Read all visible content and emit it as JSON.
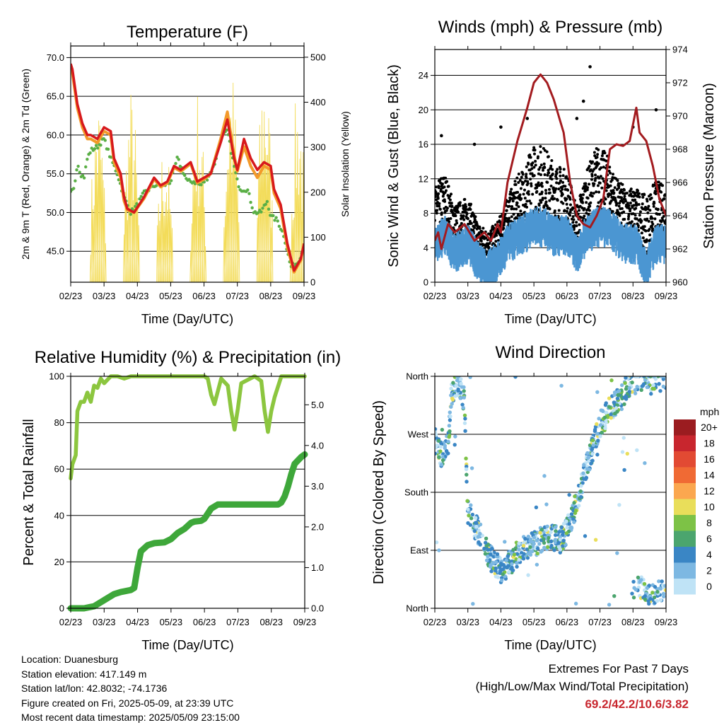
{
  "colors": {
    "t2m": "#d7191c",
    "t9m": "#f39a2a",
    "td2m": "#5aaf46",
    "solar": "#f3dc5a",
    "sonic": "#4b96d2",
    "gust": "#000000",
    "pressure": "#a31b1f",
    "rh": "#8cc63f",
    "precip": "#3ea73a"
  },
  "chart_data": [
    {
      "type": "line",
      "title": "Temperature (F)",
      "xlabel": "Time (Day/UTC)",
      "ylabel": "2m & 9m T (Red, Orange) & 2m Td (Green)",
      "y2label": "Solar Insolation (Yellow)",
      "x_ticks": [
        "02/23",
        "03/23",
        "04/23",
        "05/23",
        "06/23",
        "07/23",
        "08/23",
        "09/23"
      ],
      "ylim": [
        41,
        71.5
      ],
      "y_ticks": [
        "70.0",
        "65.0",
        "60.0",
        "55.0",
        "50.0",
        "45.0"
      ],
      "y_tick_values": [
        70,
        65,
        60,
        55,
        50,
        45
      ],
      "y2lim": [
        0,
        525
      ],
      "y2_ticks": [
        "0",
        "100",
        "200",
        "300",
        "400",
        "500"
      ],
      "y2_tick_values": [
        0,
        100,
        200,
        300,
        400,
        500
      ],
      "grid": true,
      "series": [
        {
          "key": "t2m",
          "x": [
            0,
            0.05,
            0.2,
            0.35,
            0.5,
            0.6,
            0.8,
            1.0,
            1.2,
            1.3,
            1.5,
            1.6,
            1.7,
            1.9,
            2.2,
            2.5,
            2.7,
            2.9,
            3.1,
            3.3,
            3.6,
            3.8,
            4.0,
            4.2,
            4.5,
            4.7,
            4.9,
            5.0,
            5.2,
            5.4,
            5.6,
            5.8,
            6.0,
            6.1,
            6.3,
            6.5,
            6.7,
            6.9,
            7.0
          ],
          "y": [
            69.2,
            68.5,
            64,
            61.5,
            60,
            60,
            59.5,
            61,
            60.5,
            57,
            55,
            52,
            50.5,
            50,
            52,
            54.5,
            53.5,
            54,
            56,
            55.5,
            56.5,
            54,
            54.5,
            55,
            59,
            62,
            57,
            55.5,
            59.5,
            57,
            55.5,
            56.5,
            56,
            53,
            51,
            46,
            42.5,
            44,
            46
          ]
        },
        {
          "key": "t9m",
          "x": [
            0,
            0.05,
            0.2,
            0.35,
            0.5,
            0.6,
            0.8,
            1.0,
            1.2,
            1.3,
            1.5,
            1.6,
            1.7,
            1.9,
            2.2,
            2.5,
            2.7,
            2.9,
            3.1,
            3.3,
            3.6,
            3.8,
            4.0,
            4.2,
            4.5,
            4.7,
            4.9,
            5.0,
            5.2,
            5.4,
            5.6,
            5.8,
            6.0,
            6.1,
            6.3,
            6.5,
            6.7,
            6.9,
            7.0
          ],
          "y": [
            69,
            68,
            63.5,
            61,
            59.5,
            59.5,
            59,
            60.5,
            60,
            56.5,
            54.5,
            51.5,
            50.3,
            50,
            51.8,
            54.3,
            53.3,
            53.8,
            55.8,
            55.3,
            56.3,
            53.8,
            54.3,
            55,
            59.5,
            63,
            57.5,
            55.3,
            58.5,
            56,
            54.5,
            56,
            55.5,
            52.5,
            50.5,
            45.5,
            42.3,
            43.8,
            45.8
          ]
        },
        {
          "key": "td2m",
          "x": [
            0,
            0.1,
            0.2,
            0.3,
            0.4,
            0.5,
            0.6,
            0.8,
            1.0,
            1.2,
            1.4,
            1.6,
            1.8,
            2.0,
            2.2,
            2.5,
            2.8,
            3.0,
            3.2,
            3.5,
            3.7,
            3.9,
            4.1,
            4.3,
            4.5,
            4.7,
            4.9,
            5.0,
            5.1,
            5.3,
            5.5,
            5.7,
            5.9,
            6.0,
            6.2,
            6.4,
            6.6,
            6.8,
            7.0
          ],
          "y": [
            52.5,
            53,
            56.5,
            55,
            54.5,
            57,
            58,
            58.5,
            59.5,
            57,
            55,
            52,
            50,
            51,
            52.5,
            53.5,
            53.5,
            54,
            57,
            54,
            54,
            53.5,
            54.5,
            56,
            59.5,
            60.5,
            56,
            54,
            53,
            53,
            50,
            50,
            51.5,
            49.5,
            49,
            47,
            43,
            43.5,
            45.5
          ]
        },
        {
          "key": "solar",
          "axis": "y2",
          "type": "spikes",
          "peak_days": [
            0.8,
            1.8,
            2.8,
            3.8,
            4.8,
            5.8,
            6.8
          ],
          "peak_values": [
            430,
            440,
            330,
            440,
            490,
            520,
            440
          ]
        }
      ]
    },
    {
      "type": "scatter",
      "title": "Winds (mph) & Pressure (mb)",
      "xlabel": "Time (Day/UTC)",
      "ylabel": "Sonic Wind & Gust (Blue, Black)",
      "y2label": "Station Pressure (Maroon)",
      "x_ticks": [
        "02/23",
        "03/23",
        "04/23",
        "05/23",
        "06/23",
        "07/23",
        "08/23",
        "09/23"
      ],
      "ylim": [
        0,
        27
      ],
      "y_ticks": [
        "0",
        "4",
        "8",
        "12",
        "16",
        "20",
        "24"
      ],
      "y_tick_values": [
        0,
        4,
        8,
        12,
        16,
        20,
        24
      ],
      "y2lim": [
        960,
        974
      ],
      "y2_ticks": [
        "960",
        "962",
        "964",
        "966",
        "968",
        "970",
        "972",
        "974"
      ],
      "y2_tick_values": [
        960,
        962,
        964,
        966,
        968,
        970,
        972,
        974
      ],
      "grid": true,
      "series": [
        {
          "key": "pressure",
          "type": "line",
          "x": [
            0,
            0.1,
            0.2,
            0.4,
            0.6,
            0.9,
            1.2,
            1.5,
            1.7,
            1.9,
            2.0,
            2.2,
            2.5,
            2.8,
            3.0,
            3.2,
            3.4,
            3.6,
            3.9,
            4.1,
            4.3,
            4.5,
            4.7,
            4.9,
            5.1,
            5.3,
            5.5,
            5.7,
            5.9,
            6.1,
            6.2,
            6.4,
            6.6,
            6.8,
            7.0
          ],
          "y": [
            962.5,
            963,
            962,
            963.5,
            963,
            963.5,
            962.5,
            963,
            962.5,
            963.5,
            963,
            966,
            968.5,
            970.5,
            972,
            972.5,
            972,
            971,
            969,
            966,
            964,
            963.5,
            963.3,
            964,
            965,
            968,
            968.3,
            968.2,
            968.5,
            970.5,
            969,
            968.5,
            967,
            965,
            964
          ]
        },
        {
          "key": "gust",
          "type": "scatter",
          "envelope_x": [
            0,
            0.3,
            0.6,
            1.0,
            1.3,
            1.6,
            1.9,
            2.2,
            2.6,
            3.0,
            3.3,
            3.6,
            4.0,
            4.3,
            4.6,
            4.9,
            5.2,
            5.5,
            5.8,
            6.1,
            6.4,
            6.7,
            7.0
          ],
          "envelope_y": [
            10,
            12,
            8,
            9,
            6,
            5,
            6,
            9,
            12,
            15,
            15,
            13,
            12,
            8,
            12,
            15,
            14,
            11,
            10,
            10,
            9,
            11,
            10
          ],
          "outliers": [
            [
              0.2,
              17
            ],
            [
              1.2,
              16
            ],
            [
              2.0,
              18
            ],
            [
              2.8,
              19
            ],
            [
              4.7,
              25
            ],
            [
              4.5,
              21
            ],
            [
              4.3,
              19
            ],
            [
              6.7,
              20
            ],
            [
              6.0,
              18
            ]
          ]
        },
        {
          "key": "sonic",
          "type": "line",
          "x": [
            0,
            0.3,
            0.6,
            1.0,
            1.3,
            1.6,
            1.9,
            2.2,
            2.6,
            3.0,
            3.3,
            3.6,
            4.0,
            4.3,
            4.6,
            4.9,
            5.2,
            5.5,
            5.8,
            6.1,
            6.4,
            6.7,
            7.0
          ],
          "y": [
            5,
            6,
            4,
            5,
            3,
            2,
            3,
            5,
            6,
            7,
            7,
            6,
            6,
            4,
            6,
            7,
            7,
            6,
            5,
            5,
            2,
            5,
            5
          ]
        }
      ]
    },
    {
      "type": "line",
      "title": "Relative Humidity (%) & Precipitation (in)",
      "xlabel": "Time (Day/UTC)",
      "ylabel": "Percent & Total Rainfall",
      "x_ticks": [
        "02/23",
        "03/23",
        "04/23",
        "05/23",
        "06/23",
        "07/23",
        "08/23",
        "09/23"
      ],
      "ylim": [
        0,
        100
      ],
      "y_ticks": [
        "0",
        "20",
        "40",
        "60",
        "80",
        "100"
      ],
      "y_tick_values": [
        0,
        20,
        40,
        60,
        80,
        100
      ],
      "y2lim": [
        0,
        5.7
      ],
      "y2_ticks": [
        "0.0",
        "1.0",
        "2.0",
        "3.0",
        "4.0",
        "5.0"
      ],
      "y2_tick_values": [
        0,
        1,
        2,
        3,
        4,
        5
      ],
      "grid": true,
      "series": [
        {
          "key": "rh",
          "x": [
            0,
            0.05,
            0.15,
            0.2,
            0.3,
            0.4,
            0.5,
            0.6,
            0.7,
            0.8,
            0.9,
            1.0,
            1.2,
            1.4,
            1.6,
            1.8,
            2.0,
            2.5,
            3.0,
            3.5,
            3.9,
            4.0,
            4.1,
            4.2,
            4.3,
            4.5,
            4.7,
            4.8,
            4.9,
            5.0,
            5.1,
            5.5,
            5.7,
            5.8,
            5.9,
            6.0,
            6.1,
            6.3,
            6.5,
            7.0
          ],
          "y": [
            56,
            62,
            66,
            85,
            89,
            89,
            93,
            89,
            96,
            95,
            99,
            97,
            100,
            100,
            99,
            100,
            100,
            100,
            100,
            100,
            100,
            100,
            99,
            92,
            88,
            99,
            96,
            85,
            77,
            86,
            97,
            100,
            98,
            85,
            76,
            85,
            91,
            100,
            100,
            100
          ]
        },
        {
          "key": "precip",
          "axis": "y2",
          "x": [
            0,
            0.4,
            0.7,
            0.9,
            1.0,
            1.3,
            1.5,
            1.8,
            1.9,
            2.0,
            2.1,
            2.3,
            2.5,
            2.8,
            3.0,
            3.2,
            3.4,
            3.6,
            3.7,
            3.9,
            4.0,
            4.2,
            4.4,
            4.8,
            5.2,
            5.6,
            6.0,
            6.2,
            6.3,
            6.4,
            6.5,
            6.6,
            6.7,
            6.9,
            7.0
          ],
          "y": [
            0,
            0,
            0.05,
            0.15,
            0.2,
            0.35,
            0.4,
            0.45,
            0.5,
            1.0,
            1.4,
            1.55,
            1.6,
            1.62,
            1.7,
            1.85,
            1.95,
            2.1,
            2.13,
            2.15,
            2.2,
            2.45,
            2.55,
            2.55,
            2.55,
            2.55,
            2.55,
            2.55,
            2.6,
            2.75,
            3.0,
            3.3,
            3.55,
            3.72,
            3.78
          ]
        }
      ]
    },
    {
      "type": "scatter",
      "title": "Wind Direction",
      "xlabel": "Time (Day/UTC)",
      "ylabel": "Direction (Colored By Speed)",
      "x_ticks": [
        "02/23",
        "03/23",
        "04/23",
        "05/23",
        "06/23",
        "07/23",
        "08/23",
        "09/23"
      ],
      "ylim": [
        0,
        360
      ],
      "y_ticks": [
        "North",
        "East",
        "South",
        "West",
        "North"
      ],
      "y_tick_values": [
        0,
        90,
        180,
        270,
        360
      ],
      "grid": true,
      "legend": {
        "title": "mph",
        "placement": "right",
        "labels": [
          "20+",
          "18",
          "16",
          "14",
          "12",
          "10",
          "8",
          "6",
          "4",
          "2",
          "0"
        ],
        "colors": [
          "#9b1c20",
          "#c8262e",
          "#e24a33",
          "#f06a34",
          "#fba74f",
          "#e9de5a",
          "#7dc246",
          "#4ba56e",
          "#3a86c5",
          "#7db8e2",
          "#bfe3f6"
        ]
      },
      "series": [
        {
          "key": "direction",
          "x": [
            0,
            0.2,
            0.4,
            0.5,
            0.7,
            0.8,
            0.9,
            1.0,
            1.2,
            1.4,
            1.6,
            1.8,
            2.0,
            2.2,
            2.4,
            2.6,
            2.8,
            3.0,
            3.2,
            3.4,
            3.6,
            3.8,
            4.0,
            4.2,
            4.4,
            4.5,
            4.6,
            4.8,
            5.0,
            5.2,
            5.4,
            5.6,
            5.7,
            5.8,
            6.0,
            6.2,
            6.4,
            6.6,
            6.8,
            7.0
          ],
          "y": [
            260,
            235,
            255,
            330,
            350,
            340,
            320,
            150,
            130,
            110,
            85,
            70,
            60,
            65,
            80,
            90,
            95,
            100,
            105,
            110,
            110,
            105,
            120,
            150,
            185,
            200,
            225,
            250,
            285,
            300,
            315,
            325,
            330,
            345,
            350,
            355,
            360,
            350,
            355,
            360
          ],
          "late_cluster_x": [
            6.0,
            6.2,
            6.4,
            6.6,
            6.8,
            7.0
          ],
          "late_cluster_y": [
            30,
            35,
            25,
            20,
            25,
            30
          ]
        }
      ]
    }
  ],
  "info": {
    "location": "Location: Duanesburg",
    "elevation": "Station elevation: 417.149 m",
    "latlon": "Station lat/lon: 42.8032; -74.1736",
    "created": "Figure created on Fri, 2025-05-09, at 23:39 UTC",
    "recent": "Most recent data timestamp: 2025/05/09 23:15:00"
  },
  "extremes": {
    "heading": "Extremes For Past 7 Days",
    "subheading": "(High/Low/Max Wind/Total Precipitation)",
    "values": "69.2/42.2/10.6/3.82"
  }
}
